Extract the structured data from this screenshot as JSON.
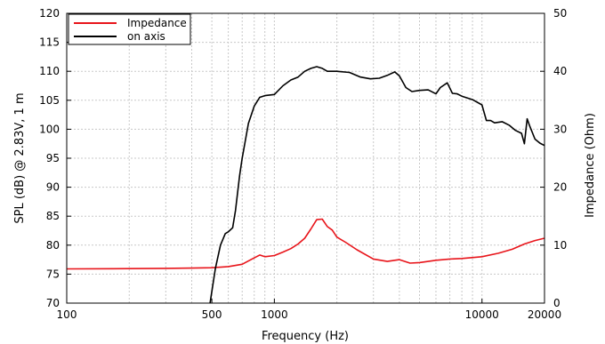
{
  "chart_data": {
    "type": "line",
    "xlabel": "Frequency (Hz)",
    "ylabel_left": "SPL (dB) @ 2.83V, 1 m",
    "ylabel_right": "Impedance (Ohm)",
    "x_scale": "log",
    "xlim": [
      100,
      20000
    ],
    "ylim_left": [
      70,
      120
    ],
    "ylim_right": [
      0,
      50
    ],
    "x_ticks": [
      {
        "value": 100,
        "label": "100"
      },
      {
        "value": 500,
        "label": "500"
      },
      {
        "value": 1000,
        "label": "1000"
      },
      {
        "value": 10000,
        "label": "10000"
      },
      {
        "value": 20000,
        "label": "20000"
      }
    ],
    "y_ticks_left": [
      70,
      75,
      80,
      85,
      90,
      95,
      100,
      105,
      110,
      115,
      120
    ],
    "y_ticks_right": [
      0,
      10,
      20,
      30,
      40,
      50
    ],
    "grid": true,
    "legend_position": "top-left",
    "series": [
      {
        "name": "Impedance",
        "color": "#e8141a",
        "axis": "right",
        "x": [
          100,
          200,
          300,
          400,
          500,
          600,
          700,
          780,
          850,
          900,
          1000,
          1100,
          1200,
          1300,
          1400,
          1500,
          1600,
          1700,
          1800,
          1900,
          2000,
          2200,
          2500,
          3000,
          3500,
          4000,
          4500,
          5000,
          6000,
          7000,
          8000,
          10000,
          12000,
          14000,
          16000,
          18000,
          20000
        ],
        "y": [
          5.9,
          5.95,
          6.0,
          6.05,
          6.1,
          6.3,
          6.7,
          7.6,
          8.3,
          8.0,
          8.2,
          8.8,
          9.4,
          10.2,
          11.2,
          12.8,
          14.4,
          14.5,
          13.2,
          12.6,
          11.4,
          10.5,
          9.2,
          7.6,
          7.2,
          7.5,
          6.9,
          7.0,
          7.4,
          7.6,
          7.7,
          8.0,
          8.6,
          9.3,
          10.2,
          10.8,
          11.2
        ]
      },
      {
        "name": "on axis",
        "color": "#000000",
        "axis": "left",
        "x": [
          490,
          520,
          550,
          580,
          600,
          630,
          650,
          680,
          700,
          750,
          800,
          850,
          900,
          1000,
          1100,
          1200,
          1300,
          1400,
          1500,
          1600,
          1700,
          1800,
          1900,
          2000,
          2300,
          2600,
          2900,
          3200,
          3500,
          3800,
          4000,
          4300,
          4600,
          5000,
          5500,
          6000,
          6300,
          6800,
          7200,
          7600,
          8000,
          9000,
          10000,
          10500,
          11000,
          11500,
          12500,
          13500,
          14500,
          15500,
          16000,
          16500,
          17000,
          18000,
          19000,
          20000
        ],
        "y": [
          70,
          76,
          80,
          82,
          82.3,
          83,
          86,
          92,
          95,
          101,
          104,
          105.5,
          105.8,
          106,
          107.5,
          108.5,
          109,
          110,
          110.5,
          110.8,
          110.5,
          110,
          110,
          110,
          109.8,
          109,
          108.7,
          108.8,
          109.3,
          109.9,
          109.2,
          107.2,
          106.5,
          106.7,
          106.8,
          106.1,
          107.2,
          108,
          106.2,
          106.1,
          105.7,
          105.1,
          104.2,
          101.5,
          101.5,
          101.1,
          101.3,
          100.7,
          99.8,
          99.3,
          97.5,
          101.8,
          100.5,
          98.3,
          97.6,
          97.2
        ]
      }
    ]
  }
}
